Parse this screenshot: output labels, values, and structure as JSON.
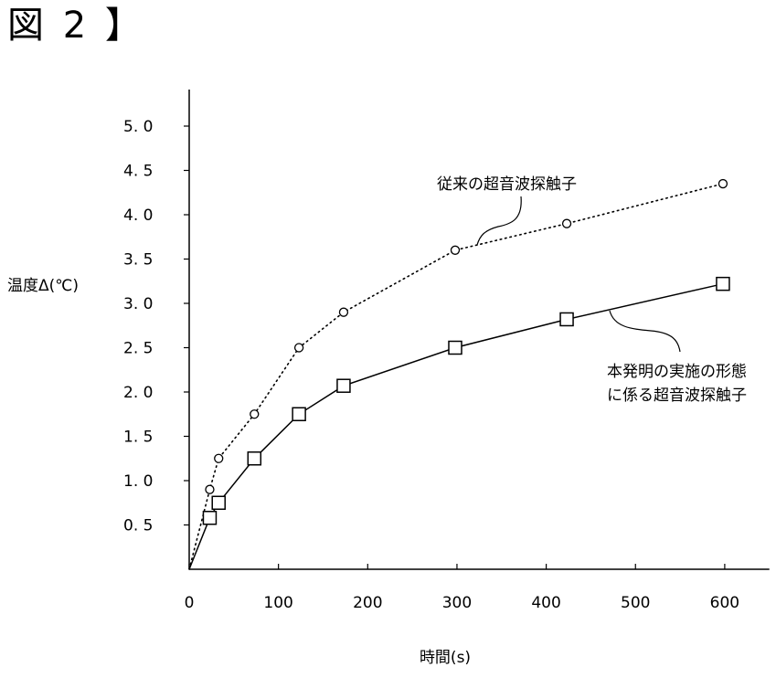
{
  "figure_label": "図 2 】",
  "chart_data": {
    "type": "line",
    "title": "",
    "xlabel": "時間(s)",
    "ylabel": "温度Δ(℃)",
    "xlim": [
      0,
      650
    ],
    "ylim": [
      0,
      5.0
    ],
    "x_ticks": [
      0,
      100,
      200,
      300,
      400,
      500,
      600
    ],
    "x_tick_labels": [
      "0",
      "100",
      "200",
      "300",
      "400",
      "500",
      "600"
    ],
    "y_ticks": [
      0.5,
      1.0,
      1.5,
      2.0,
      2.5,
      3.0,
      3.5,
      4.0,
      4.5,
      5.0
    ],
    "y_tick_labels": [
      "0. 5",
      "1. 0",
      "1. 5",
      "2. 0",
      "2. 5",
      "3. 0",
      "3. 5",
      "4. 0",
      "4. 5",
      "5. 0"
    ],
    "grid": false,
    "legend": "none",
    "series": [
      {
        "name": "従来の超音波探触子",
        "marker": "circle",
        "line": "dotted",
        "x": [
          0,
          23,
          33,
          73,
          123,
          173,
          298,
          423,
          598
        ],
        "y": [
          0,
          0.9,
          1.25,
          1.75,
          2.5,
          2.9,
          3.6,
          3.9,
          4.35
        ]
      },
      {
        "name": "本発明の実施の形態に係る超音波探触子",
        "marker": "square",
        "line": "solid",
        "x": [
          0,
          23,
          33,
          73,
          123,
          173,
          298,
          423,
          598
        ],
        "y": [
          0,
          0.58,
          0.75,
          1.25,
          1.75,
          2.07,
          2.5,
          2.82,
          3.22
        ]
      }
    ],
    "annotations": [
      {
        "text_lines": [
          "従来の超音波探触子"
        ],
        "series": 0
      },
      {
        "text_lines": [
          "本発明の実施の形態",
          "に係る超音波探触子"
        ],
        "series": 1
      }
    ]
  }
}
